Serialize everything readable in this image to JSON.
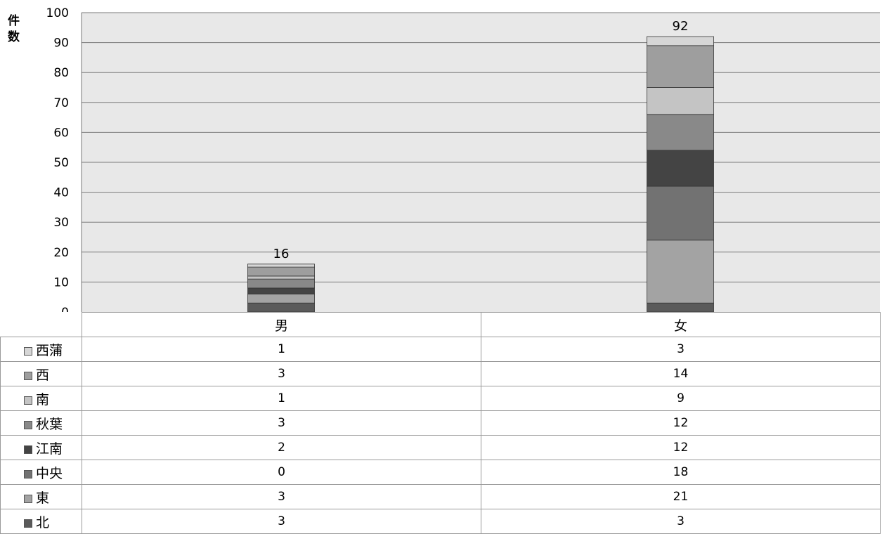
{
  "chart_data": {
    "type": "bar",
    "stacked": true,
    "ylabel": "件数",
    "ylim": [
      0,
      100
    ],
    "yticks": [
      0,
      10,
      20,
      30,
      40,
      50,
      60,
      70,
      80,
      90,
      100
    ],
    "grid": true,
    "legend": "data-table",
    "categories": [
      "男",
      "女"
    ],
    "totals": [
      16,
      92
    ],
    "series": [
      {
        "name": "北",
        "values": [
          3,
          3
        ],
        "color": "#5a5a5a"
      },
      {
        "name": "東",
        "values": [
          3,
          21
        ],
        "color": "#a3a3a3"
      },
      {
        "name": "中央",
        "values": [
          0,
          18
        ],
        "color": "#727272"
      },
      {
        "name": "江南",
        "values": [
          2,
          12
        ],
        "color": "#444444"
      },
      {
        "name": "秋葉",
        "values": [
          3,
          12
        ],
        "color": "#898989"
      },
      {
        "name": "南",
        "values": [
          1,
          9
        ],
        "color": "#c4c4c4"
      },
      {
        "name": "西",
        "values": [
          3,
          14
        ],
        "color": "#9e9e9e"
      },
      {
        "name": "西蒲",
        "values": [
          1,
          3
        ],
        "color": "#d6d6d6"
      }
    ]
  }
}
